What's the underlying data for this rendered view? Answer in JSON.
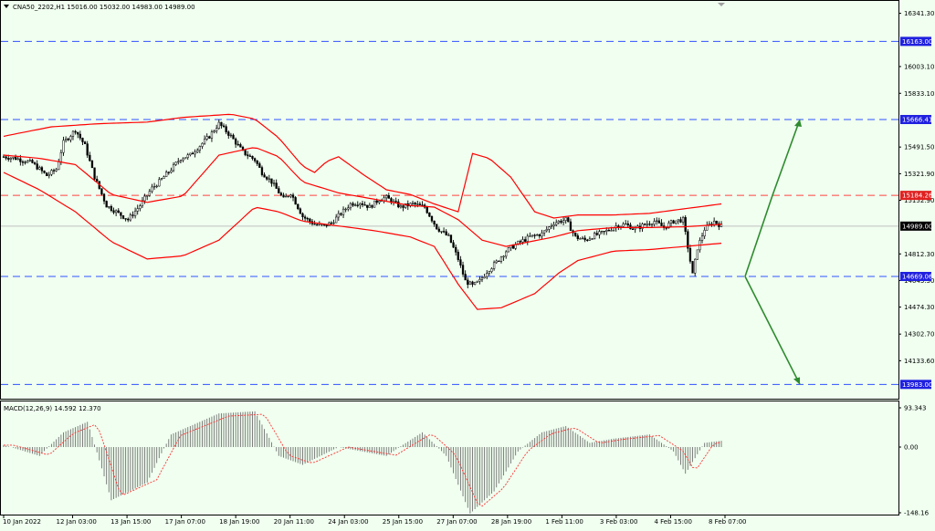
{
  "header": {
    "symbol_info": "CNA50_2202,H1  15016.00 15032.00 14983.00 14989.00"
  },
  "colors": {
    "background": "#F0FFF0",
    "bollinger": "#FF0000",
    "candle": "#000000",
    "blue_level": "#3050FF",
    "red_level": "#FF4040",
    "arrow": "#2E8B2E",
    "macd_hist": "#707070",
    "macd_signal": "#FF3030"
  },
  "chart_data": [
    {
      "type": "candlestick",
      "symbol": "CNA50_2202",
      "timeframe": "H1",
      "ohlc_last": {
        "open": 15016.0,
        "high": 15032.0,
        "low": 14983.0,
        "close": 14989.0
      },
      "current_price": 14989.0,
      "y_ticks": [
        "16341.30",
        "16003.10",
        "15833.10",
        "15491.50",
        "15321.90",
        "15152.90",
        "14812.30",
        "14643.30",
        "14474.30",
        "14302.70",
        "14133.60"
      ],
      "x_ticks": [
        "10 Jan 2022",
        "12 Jan 03:00",
        "13 Jan 15:00",
        "17 Jan 07:00",
        "18 Jan 19:00",
        "20 Jan 11:00",
        "24 Jan 03:00",
        "25 Jan 15:00",
        "27 Jan 07:00",
        "28 Jan 19:00",
        "1 Feb 11:00",
        "3 Feb 03:00",
        "4 Feb 15:00",
        "8 Feb 07:00"
      ],
      "horizontal_levels": [
        {
          "value": 16163.0,
          "label": "16163.00",
          "color": "blue"
        },
        {
          "value": 15666.41,
          "label": "15666.41",
          "color": "blue"
        },
        {
          "value": 15184.26,
          "label": "15184.26",
          "color": "red"
        },
        {
          "value": 14989.0,
          "label": "14989.00",
          "color": "black"
        },
        {
          "value": 14669.06,
          "label": "14669.06",
          "color": "blue"
        },
        {
          "value": 13983.0,
          "label": "13983.00",
          "color": "blue"
        }
      ],
      "close_path": [
        [
          0,
          15430
        ],
        [
          5,
          15420
        ],
        [
          12,
          15390
        ],
        [
          18,
          15310
        ],
        [
          22,
          15350
        ],
        [
          25,
          15520
        ],
        [
          30,
          15600
        ],
        [
          34,
          15500
        ],
        [
          38,
          15300
        ],
        [
          43,
          15120
        ],
        [
          47,
          15080
        ],
        [
          52,
          15030
        ],
        [
          57,
          15120
        ],
        [
          62,
          15230
        ],
        [
          65,
          15270
        ],
        [
          70,
          15350
        ],
        [
          74,
          15420
        ],
        [
          78,
          15440
        ],
        [
          82,
          15500
        ],
        [
          86,
          15560
        ],
        [
          90,
          15640
        ],
        [
          95,
          15560
        ],
        [
          100,
          15460
        ],
        [
          105,
          15410
        ],
        [
          108,
          15330
        ],
        [
          112,
          15270
        ],
        [
          117,
          15160
        ],
        [
          120,
          15200
        ],
        [
          125,
          15050
        ],
        [
          130,
          15000
        ],
        [
          134,
          14990
        ],
        [
          137,
          15010
        ],
        [
          141,
          15070
        ],
        [
          145,
          15130
        ],
        [
          149,
          15140
        ],
        [
          153,
          15110
        ],
        [
          157,
          15160
        ],
        [
          160,
          15170
        ],
        [
          166,
          15110
        ],
        [
          171,
          15130
        ],
        [
          176,
          15110
        ],
        [
          181,
          14980
        ],
        [
          186,
          14920
        ],
        [
          190,
          14780
        ],
        [
          193,
          14640
        ],
        [
          196,
          14610
        ],
        [
          199,
          14640
        ],
        [
          202,
          14700
        ],
        [
          206,
          14760
        ],
        [
          210,
          14830
        ],
        [
          215,
          14880
        ],
        [
          220,
          14920
        ],
        [
          225,
          14940
        ],
        [
          230,
          15010
        ],
        [
          235,
          15030
        ],
        [
          239,
          14920
        ],
        [
          243,
          14900
        ],
        [
          247,
          14930
        ],
        [
          251,
          14950
        ],
        [
          256,
          14990
        ],
        [
          260,
          15000
        ],
        [
          264,
          14970
        ],
        [
          268,
          15000
        ],
        [
          272,
          15020
        ],
        [
          276,
          14980
        ],
        [
          280,
          15020
        ],
        [
          284,
          15030
        ],
        [
          288,
          14680
        ],
        [
          290,
          14850
        ],
        [
          293,
          14970
        ],
        [
          297,
          15020
        ],
        [
          300,
          14989
        ]
      ],
      "bollinger_upper": [
        [
          0,
          15560
        ],
        [
          20,
          15620
        ],
        [
          40,
          15640
        ],
        [
          60,
          15650
        ],
        [
          75,
          15680
        ],
        [
          95,
          15700
        ],
        [
          105,
          15670
        ],
        [
          115,
          15550
        ],
        [
          125,
          15370
        ],
        [
          130,
          15330
        ],
        [
          135,
          15400
        ],
        [
          140,
          15430
        ],
        [
          150,
          15320
        ],
        [
          160,
          15220
        ],
        [
          170,
          15190
        ],
        [
          180,
          15130
        ],
        [
          190,
          15080
        ],
        [
          196,
          15450
        ],
        [
          203,
          15420
        ],
        [
          212,
          15300
        ],
        [
          222,
          15080
        ],
        [
          230,
          15040
        ],
        [
          240,
          15060
        ],
        [
          255,
          15060
        ],
        [
          270,
          15070
        ],
        [
          285,
          15100
        ],
        [
          300,
          15130
        ]
      ],
      "bollinger_mid": [
        [
          0,
          15440
        ],
        [
          15,
          15420
        ],
        [
          30,
          15380
        ],
        [
          45,
          15190
        ],
        [
          60,
          15140
        ],
        [
          75,
          15180
        ],
        [
          90,
          15440
        ],
        [
          105,
          15490
        ],
        [
          115,
          15430
        ],
        [
          125,
          15270
        ],
        [
          140,
          15200
        ],
        [
          155,
          15160
        ],
        [
          170,
          15120
        ],
        [
          180,
          15110
        ],
        [
          190,
          15030
        ],
        [
          200,
          14900
        ],
        [
          210,
          14860
        ],
        [
          220,
          14890
        ],
        [
          230,
          14920
        ],
        [
          240,
          14960
        ],
        [
          255,
          14980
        ],
        [
          270,
          14980
        ],
        [
          285,
          14985
        ],
        [
          300,
          15000
        ]
      ],
      "bollinger_lower": [
        [
          0,
          15330
        ],
        [
          15,
          15220
        ],
        [
          30,
          15080
        ],
        [
          45,
          14890
        ],
        [
          60,
          14780
        ],
        [
          75,
          14800
        ],
        [
          90,
          14900
        ],
        [
          105,
          15110
        ],
        [
          115,
          15080
        ],
        [
          125,
          15020
        ],
        [
          140,
          14990
        ],
        [
          155,
          14960
        ],
        [
          170,
          14920
        ],
        [
          180,
          14860
        ],
        [
          190,
          14620
        ],
        [
          198,
          14460
        ],
        [
          208,
          14470
        ],
        [
          222,
          14560
        ],
        [
          232,
          14690
        ],
        [
          240,
          14770
        ],
        [
          255,
          14830
        ],
        [
          270,
          14840
        ],
        [
          285,
          14860
        ],
        [
          300,
          14880
        ]
      ]
    },
    {
      "type": "bar",
      "indicator": "MACD",
      "label": "MACD(12,26,9) 14.592 12.370",
      "macd_value": 14.592,
      "signal_value": 12.37,
      "y_ticks": [
        "93.343",
        "0.00",
        "-148.16"
      ],
      "ylim": [
        -148.16,
        93.343
      ],
      "histogram": [
        [
          0,
          5
        ],
        [
          15,
          -20
        ],
        [
          25,
          35
        ],
        [
          35,
          60
        ],
        [
          45,
          -120
        ],
        [
          60,
          -80
        ],
        [
          70,
          30
        ],
        [
          90,
          80
        ],
        [
          105,
          85
        ],
        [
          115,
          -20
        ],
        [
          125,
          -40
        ],
        [
          140,
          0
        ],
        [
          150,
          -10
        ],
        [
          160,
          -20
        ],
        [
          175,
          35
        ],
        [
          185,
          -20
        ],
        [
          195,
          -150
        ],
        [
          205,
          -100
        ],
        [
          215,
          -10
        ],
        [
          225,
          35
        ],
        [
          235,
          50
        ],
        [
          245,
          10
        ],
        [
          255,
          20
        ],
        [
          270,
          30
        ],
        [
          280,
          -10
        ],
        [
          285,
          -60
        ],
        [
          293,
          10
        ],
        [
          300,
          15
        ]
      ]
    }
  ]
}
